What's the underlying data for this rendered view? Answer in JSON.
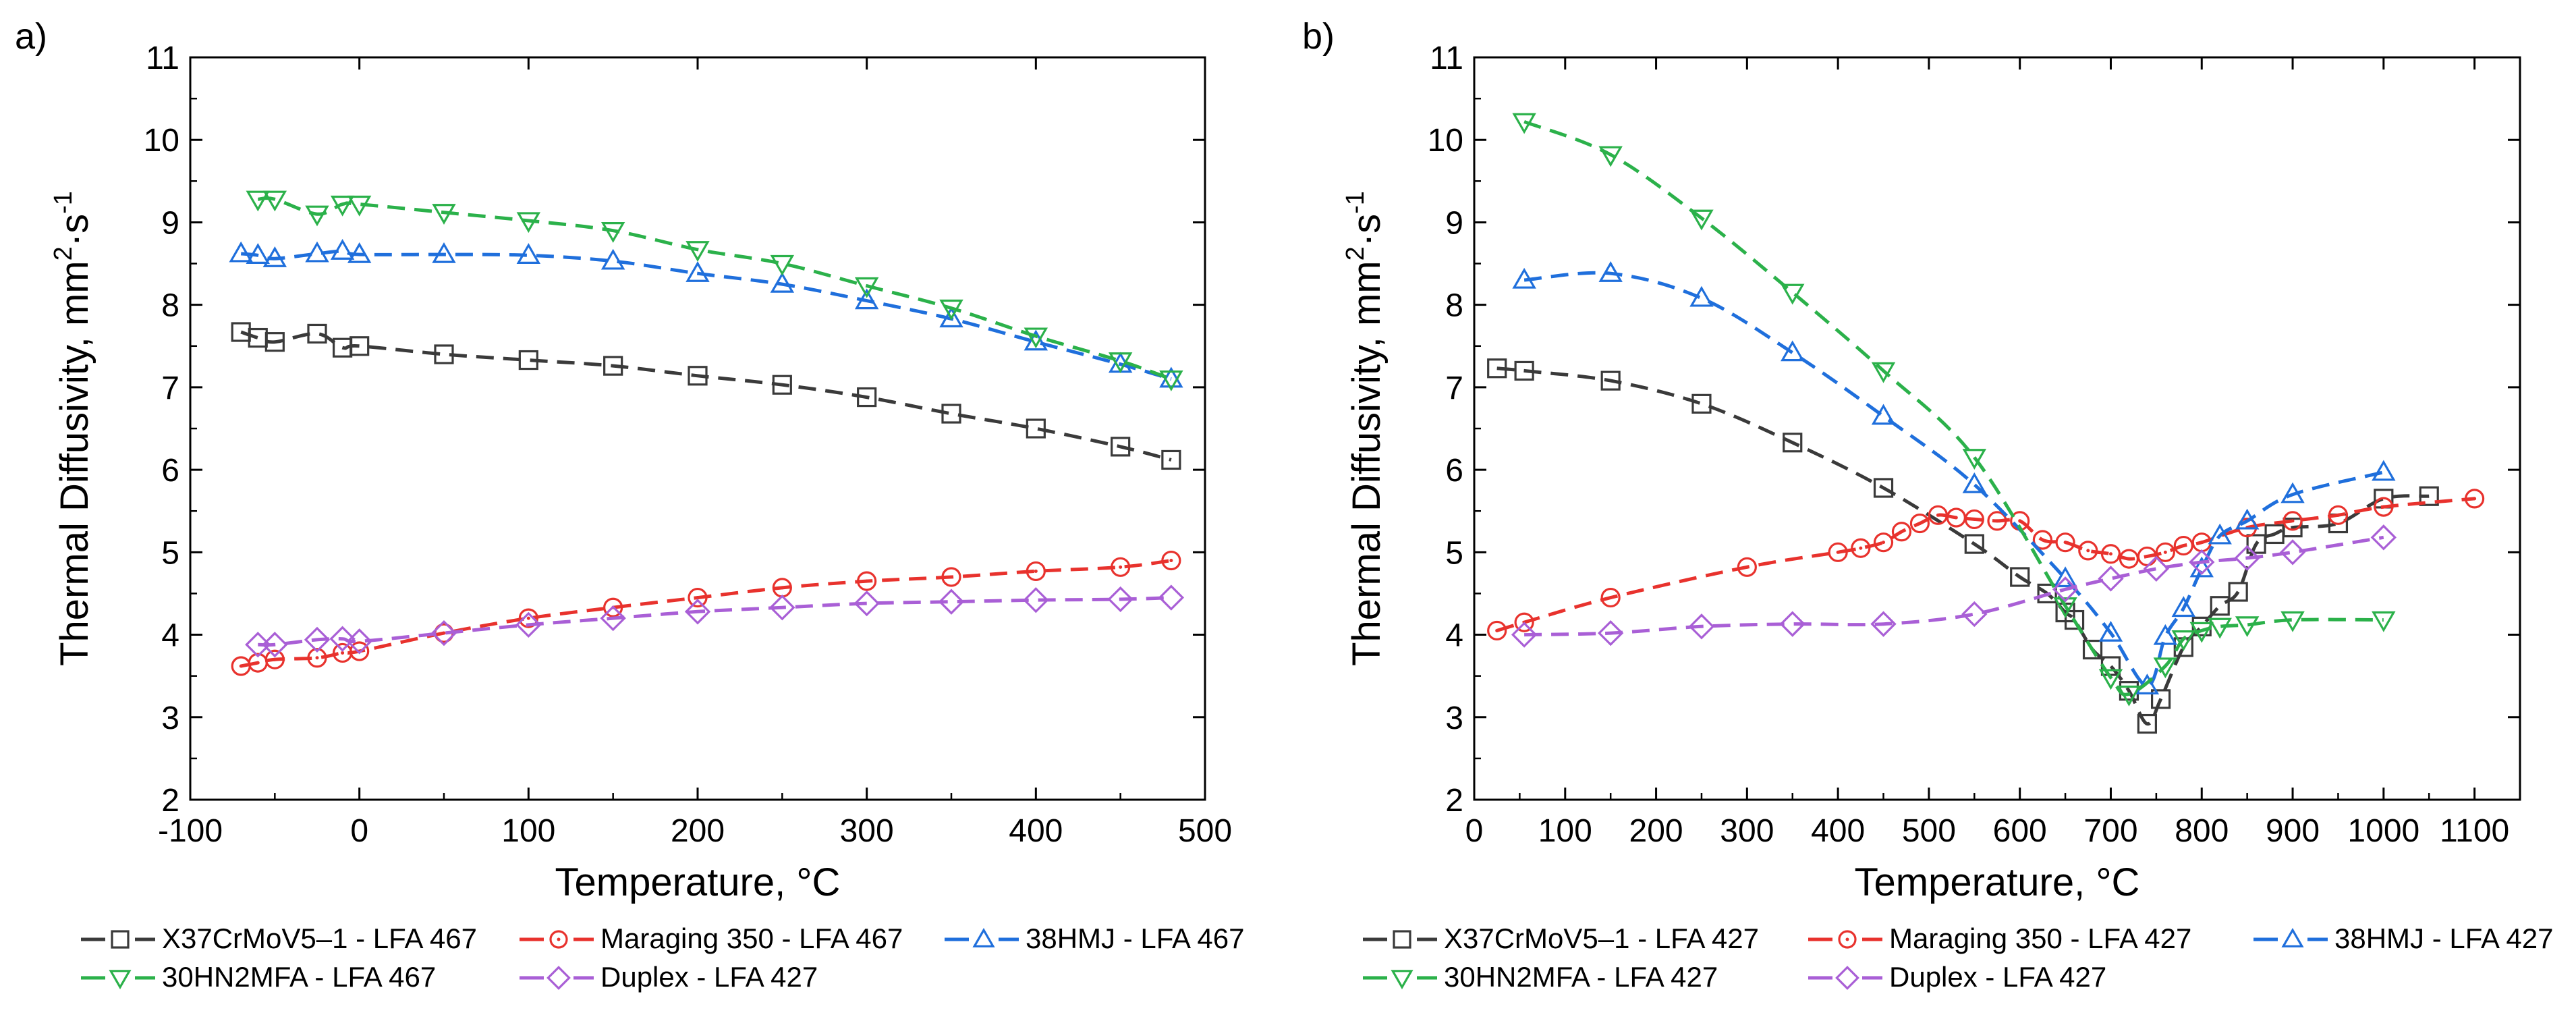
{
  "chart_data": [
    {
      "type": "line",
      "panel_label": "a)",
      "xlabel": "Temperature, °C",
      "ylabel": "Thermal Diffusivity, mm²·s⁻¹",
      "ylabel_main": "Thermal Diffusivity, mm",
      "ylabel_sup1": "2",
      "ylabel_mid": "·s",
      "ylabel_sup2": "-1",
      "xlim": [
        -100,
        500
      ],
      "ylim": [
        2,
        11
      ],
      "xticks": [
        -100,
        0,
        100,
        200,
        300,
        400,
        500
      ],
      "xtick_labels": [
        "-100",
        "0",
        "100",
        "200",
        "300",
        "400",
        "500"
      ],
      "yticks": [
        2,
        3,
        4,
        5,
        6,
        7,
        8,
        9,
        10,
        11
      ],
      "ytick_labels": [
        "2",
        "3",
        "4",
        "5",
        "6",
        "7",
        "8",
        "9",
        "10",
        "11"
      ],
      "grid": false,
      "legend_position": "bottom",
      "series": [
        {
          "name": "X37CrMoV5–1 - LFA 467",
          "color": "#3a3a3a",
          "marker": "square",
          "x": [
            -70,
            -60,
            -50,
            -25,
            -10,
            0,
            50,
            100,
            150,
            200,
            250,
            300,
            350,
            400,
            450,
            480
          ],
          "y": [
            7.67,
            7.6,
            7.55,
            7.65,
            7.48,
            7.5,
            7.4,
            7.33,
            7.26,
            7.14,
            7.03,
            6.88,
            6.68,
            6.5,
            6.28,
            6.12
          ]
        },
        {
          "name": "Maraging 350 - LFA 467",
          "color": "#e8322d",
          "marker": "circle",
          "x": [
            -70,
            -60,
            -50,
            -25,
            -10,
            0,
            50,
            100,
            150,
            200,
            250,
            300,
            350,
            400,
            450,
            480
          ],
          "y": [
            3.62,
            3.66,
            3.7,
            3.72,
            3.78,
            3.8,
            4.02,
            4.2,
            4.33,
            4.45,
            4.57,
            4.65,
            4.7,
            4.77,
            4.82,
            4.9
          ]
        },
        {
          "name": "38HMJ - LFA 467",
          "color": "#1f6fdc",
          "marker": "triangle-up",
          "x": [
            -70,
            -60,
            -50,
            -25,
            -10,
            0,
            50,
            100,
            150,
            200,
            250,
            300,
            350,
            400,
            450,
            480
          ],
          "y": [
            8.62,
            8.6,
            8.56,
            8.62,
            8.65,
            8.61,
            8.61,
            8.6,
            8.53,
            8.38,
            8.25,
            8.05,
            7.83,
            7.55,
            7.28,
            7.1
          ]
        },
        {
          "name": "30HN2MFA - LFA 467",
          "color": "#2bb14a",
          "marker": "triangle-down",
          "x": [
            -60,
            -50,
            -25,
            -10,
            0,
            50,
            100,
            150,
            200,
            250,
            300,
            350,
            400,
            450,
            480
          ],
          "y": [
            9.28,
            9.28,
            9.1,
            9.22,
            9.22,
            9.12,
            9.02,
            8.9,
            8.67,
            8.5,
            8.23,
            7.96,
            7.62,
            7.32,
            7.1
          ]
        },
        {
          "name": "Duplex - LFA 427",
          "color": "#a95fd6",
          "marker": "diamond",
          "x": [
            -60,
            -50,
            -25,
            -10,
            0,
            50,
            100,
            150,
            200,
            250,
            300,
            350,
            400,
            450,
            480
          ],
          "y": [
            3.88,
            3.88,
            3.94,
            3.95,
            3.92,
            4.02,
            4.12,
            4.2,
            4.28,
            4.33,
            4.38,
            4.4,
            4.42,
            4.43,
            4.45
          ]
        }
      ]
    },
    {
      "type": "line",
      "panel_label": "b)",
      "xlabel": "Temperature, °C",
      "ylabel": "Thermal Diffusivity, mm²·s⁻¹",
      "ylabel_main": "Thermal Diffusivity, mm",
      "ylabel_sup1": "2",
      "ylabel_mid": "·s",
      "ylabel_sup2": "-1",
      "xlim": [
        0,
        1150
      ],
      "ylim": [
        2,
        11
      ],
      "xticks": [
        0,
        100,
        200,
        300,
        400,
        500,
        600,
        700,
        800,
        900,
        1000,
        1100
      ],
      "xtick_labels": [
        "0",
        "100",
        "200",
        "300",
        "400",
        "500",
        "600",
        "700",
        "800",
        "900",
        "1000",
        "1100"
      ],
      "yticks": [
        2,
        3,
        4,
        5,
        6,
        7,
        8,
        9,
        10,
        11
      ],
      "ytick_labels": [
        "2",
        "3",
        "4",
        "5",
        "6",
        "7",
        "8",
        "9",
        "10",
        "11"
      ],
      "grid": false,
      "legend_position": "bottom",
      "series": [
        {
          "name": "X37CrMoV5–1  - LFA 427",
          "color": "#3a3a3a",
          "marker": "square",
          "x": [
            25,
            55,
            150,
            250,
            350,
            450,
            550,
            600,
            630,
            650,
            660,
            680,
            700,
            720,
            740,
            755,
            780,
            800,
            820,
            840,
            860,
            880,
            900,
            950,
            1000,
            1050
          ],
          "y": [
            7.23,
            7.2,
            7.08,
            6.8,
            6.33,
            5.78,
            5.1,
            4.7,
            4.5,
            4.27,
            4.18,
            3.82,
            3.62,
            3.32,
            2.92,
            3.22,
            3.85,
            4.1,
            4.35,
            4.52,
            5.1,
            5.22,
            5.3,
            5.35,
            5.65,
            5.68
          ]
        },
        {
          "name": "Maraging 350 - LFA 427",
          "color": "#e8322d",
          "marker": "circle",
          "x": [
            25,
            55,
            150,
            300,
            400,
            425,
            450,
            470,
            490,
            510,
            530,
            550,
            575,
            600,
            625,
            650,
            675,
            700,
            720,
            740,
            760,
            780,
            800,
            850,
            900,
            950,
            1000,
            1100
          ],
          "y": [
            4.05,
            4.15,
            4.45,
            4.82,
            5.0,
            5.05,
            5.12,
            5.25,
            5.35,
            5.45,
            5.42,
            5.4,
            5.38,
            5.38,
            5.15,
            5.12,
            5.02,
            4.98,
            4.92,
            4.95,
            5.0,
            5.08,
            5.12,
            5.3,
            5.38,
            5.45,
            5.55,
            5.65
          ]
        },
        {
          "name": "38HMJ - LFA 427",
          "color": "#1f6fdc",
          "marker": "triangle-up",
          "x": [
            55,
            150,
            250,
            350,
            450,
            550,
            650,
            700,
            740,
            760,
            780,
            800,
            820,
            850,
            900,
            1000
          ],
          "y": [
            8.3,
            8.38,
            8.08,
            7.42,
            6.65,
            5.82,
            4.68,
            4.02,
            3.38,
            3.98,
            4.32,
            4.8,
            5.2,
            5.38,
            5.7,
            5.97
          ]
        },
        {
          "name": "30HN2MFA - LFA 427",
          "color": "#2bb14a",
          "marker": "triangle-down",
          "x": [
            55,
            150,
            250,
            350,
            450,
            550,
            650,
            700,
            720,
            760,
            780,
            800,
            820,
            850,
            900,
            1000
          ],
          "y": [
            10.22,
            9.82,
            9.05,
            8.15,
            7.2,
            6.15,
            4.35,
            3.48,
            3.28,
            3.62,
            3.95,
            4.05,
            4.1,
            4.12,
            4.18,
            4.18
          ]
        },
        {
          "name": "Duplex - LFA 427",
          "color": "#a95fd6",
          "marker": "diamond",
          "x": [
            55,
            150,
            250,
            350,
            450,
            550,
            650,
            700,
            750,
            800,
            850,
            900,
            1000
          ],
          "y": [
            4.0,
            4.02,
            4.1,
            4.13,
            4.13,
            4.25,
            4.55,
            4.68,
            4.8,
            4.88,
            4.93,
            5.0,
            5.18
          ]
        }
      ]
    }
  ]
}
